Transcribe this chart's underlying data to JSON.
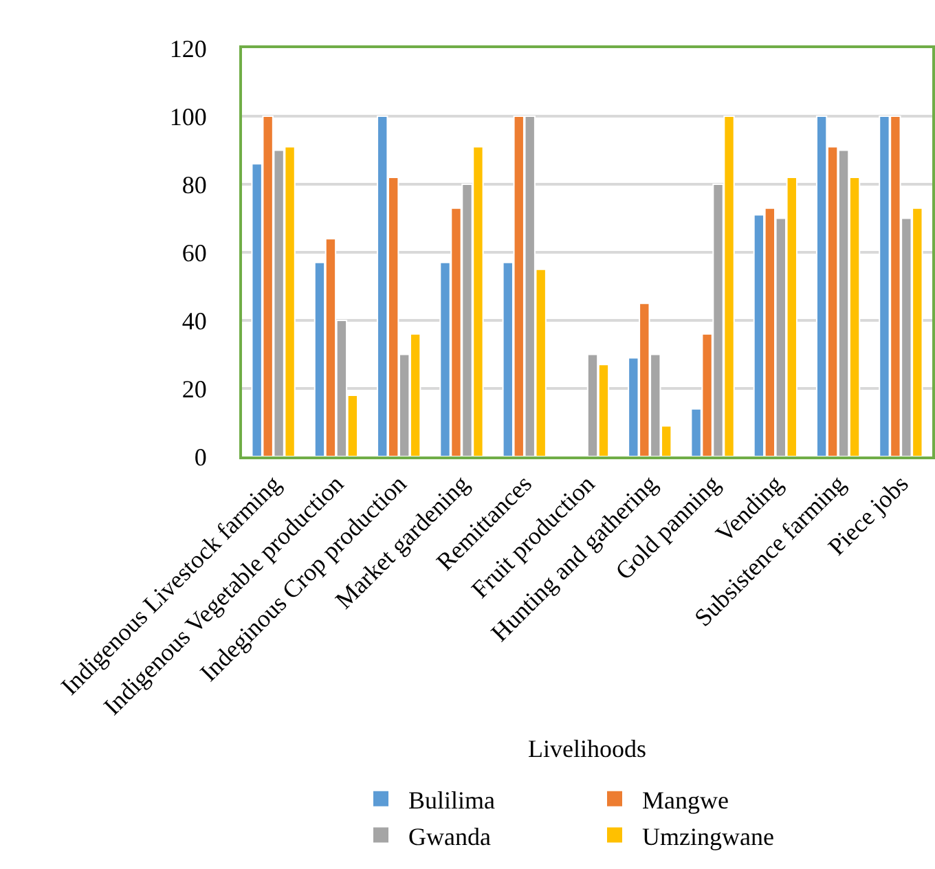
{
  "chart_data": {
    "type": "bar",
    "xlabel": "Livelihoods",
    "categories": [
      "Indigenous Livestock farming",
      "Indigenous Vegetable production",
      "Indeginous Crop production",
      "Market gardening",
      "Remittances",
      "Fruit production",
      "Hunting and gathering",
      "Gold panning",
      "Vending",
      "Subsistence farming",
      "Piece jobs"
    ],
    "series": [
      {
        "name": "Bulilima",
        "color": "#5b9bd5",
        "values": [
          86,
          57,
          100,
          57,
          57,
          null,
          29,
          14,
          71,
          100,
          100
        ]
      },
      {
        "name": "Mangwe",
        "color": "#ed7d31",
        "values": [
          100,
          64,
          82,
          73,
          100,
          null,
          45,
          36,
          73,
          91,
          100
        ]
      },
      {
        "name": "Gwanda",
        "color": "#a5a5a5",
        "values": [
          90,
          40,
          30,
          80,
          100,
          30,
          30,
          80,
          70,
          90,
          70
        ]
      },
      {
        "name": "Umzingwane",
        "color": "#ffc000",
        "values": [
          91,
          18,
          36,
          91,
          55,
          27,
          9,
          100,
          82,
          82,
          73
        ]
      }
    ],
    "ylim": [
      0,
      120
    ],
    "yticks": [
      0,
      20,
      40,
      60,
      80,
      100,
      120
    ],
    "grid": "y",
    "legend": "bottom"
  }
}
